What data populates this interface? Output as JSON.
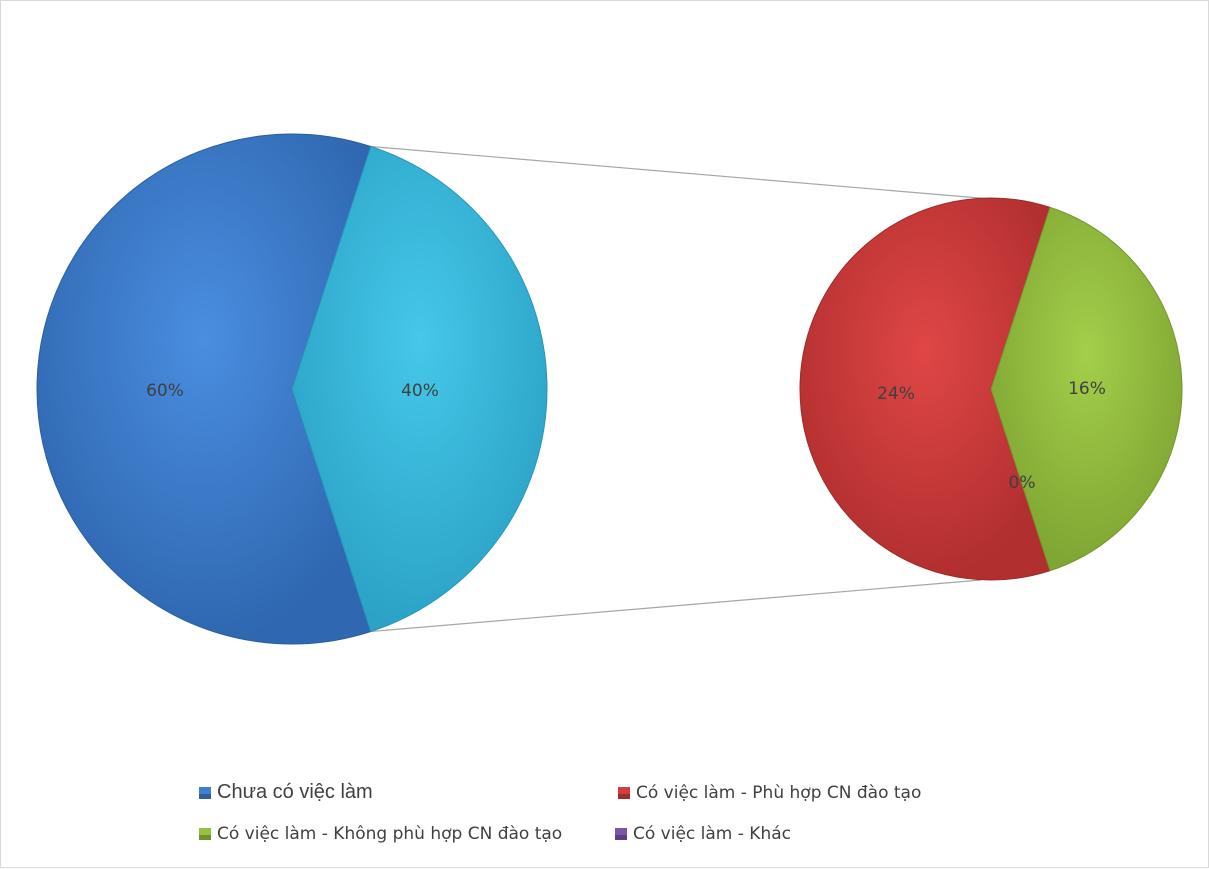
{
  "chart_data": {
    "type": "pie",
    "variant": "pie-of-pie",
    "categories": [
      "Chưa có việc làm",
      "Có việc làm - Phù hợp CN đào tạo",
      "Có việc làm - Không phù hợp CN đào tạo",
      "Có việc làm - Khác"
    ],
    "main_pie": {
      "values": [
        60,
        40
      ],
      "labels": [
        "60%",
        "40%"
      ],
      "slice_names": [
        "Chưa có việc làm",
        "Có việc làm"
      ]
    },
    "secondary_pie": {
      "values": [
        24,
        16,
        0
      ],
      "labels": [
        "24%",
        "16%",
        "0%"
      ],
      "slice_names": [
        "Có việc làm - Phù hợp CN đào tạo",
        "Có việc làm - Không phù hợp CN đào tạo",
        "Có việc làm - Khác"
      ]
    },
    "legend_position": "bottom",
    "colors": {
      "chua_co_viec_lam": "#3f7fd1",
      "co_viec_lam_main": "#3cbde0",
      "phu_hop": "#d23c3c",
      "khong_phu_hop": "#95c13f",
      "khac": "#7a55a8",
      "connector": "#a6a6a6"
    }
  }
}
